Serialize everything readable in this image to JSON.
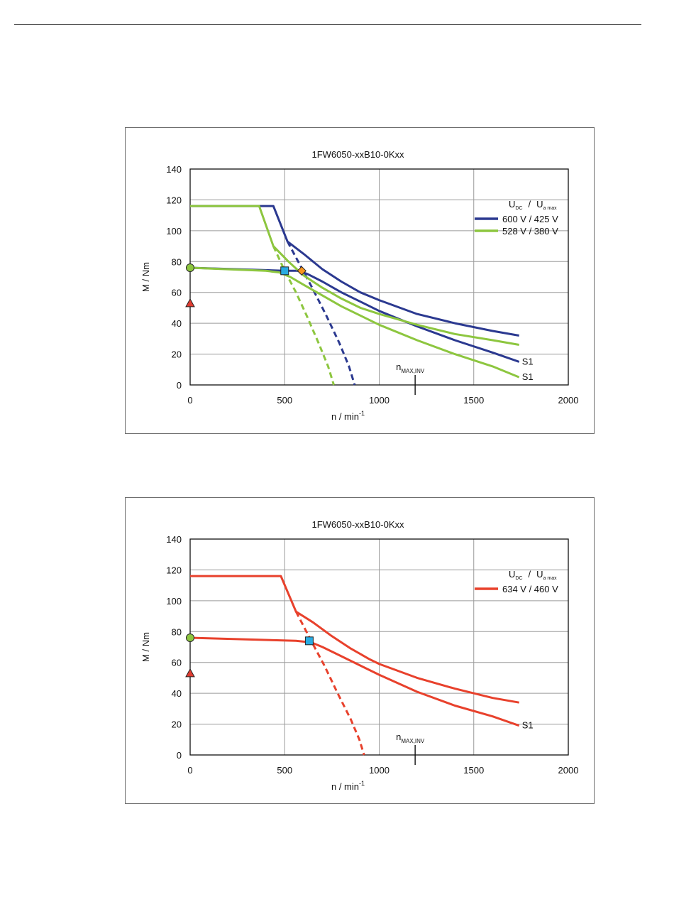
{
  "chart_data": [
    {
      "type": "line",
      "title": "1FW6050-xxB10-0Kxx",
      "xlabel": "n / min",
      "xlabel_sup": "-1",
      "ylabel": "M / Nm",
      "xlim": [
        0,
        2000
      ],
      "ylim": [
        0,
        140
      ],
      "xticks": [
        0,
        500,
        1000,
        1500,
        2000
      ],
      "yticks": [
        0,
        20,
        40,
        60,
        80,
        100,
        120,
        140
      ],
      "grid": true,
      "legend": {
        "position": "top-right",
        "header_main_1": "U",
        "header_sub_1": "DC",
        "header_sep": "/",
        "header_main_2": "U",
        "header_sub_2": "a max",
        "entries": [
          {
            "label": "600 V / 425 V",
            "color": "#2b3990"
          },
          {
            "label": "528 V / 380 V",
            "color": "#8dc63f"
          }
        ]
      },
      "annotation": {
        "text": "n",
        "sub": "MAX,INV",
        "x": 1190
      },
      "series": [
        {
          "color": "#2b3990",
          "style": "solid",
          "label": "",
          "points": [
            [
              0,
              116
            ],
            [
              440,
              116
            ],
            [
              515,
              93
            ],
            [
              600,
              85
            ],
            [
              700,
              75
            ],
            [
              800,
              67
            ],
            [
              900,
              60
            ],
            [
              1000,
              55
            ],
            [
              1200,
              46
            ],
            [
              1400,
              40
            ],
            [
              1600,
              35
            ],
            [
              1740,
              32
            ]
          ]
        },
        {
          "color": "#2b3990",
          "style": "dashed",
          "label": "",
          "points": [
            [
              515,
              93
            ],
            [
              580,
              78
            ],
            [
              650,
              62
            ],
            [
              720,
              45
            ],
            [
              790,
              27
            ],
            [
              840,
              12
            ],
            [
              870,
              0
            ]
          ]
        },
        {
          "color": "#2b3990",
          "style": "solid",
          "label": "S1",
          "points": [
            [
              0,
              76
            ],
            [
              500,
              74
            ],
            [
              570,
              74
            ],
            [
              620,
              72
            ],
            [
              700,
              67
            ],
            [
              800,
              60
            ],
            [
              900,
              54
            ],
            [
              1000,
              48
            ],
            [
              1200,
              38
            ],
            [
              1400,
              29
            ],
            [
              1600,
              21
            ],
            [
              1740,
              15
            ]
          ]
        },
        {
          "color": "#8dc63f",
          "style": "solid",
          "label": "",
          "points": [
            [
              0,
              116
            ],
            [
              365,
              116
            ],
            [
              440,
              90
            ],
            [
              520,
              80
            ],
            [
              600,
              71
            ],
            [
              700,
              63
            ],
            [
              800,
              56
            ],
            [
              900,
              50
            ],
            [
              1000,
              46
            ],
            [
              1200,
              39
            ],
            [
              1400,
              33
            ],
            [
              1600,
              29
            ],
            [
              1740,
              26
            ]
          ]
        },
        {
          "color": "#8dc63f",
          "style": "dashed",
          "label": "",
          "points": [
            [
              440,
              90
            ],
            [
              500,
              74
            ],
            [
              560,
              60
            ],
            [
              620,
              44
            ],
            [
              680,
              27
            ],
            [
              730,
              12
            ],
            [
              760,
              0
            ]
          ]
        },
        {
          "color": "#8dc63f",
          "style": "solid",
          "label": "S1",
          "points": [
            [
              0,
              76
            ],
            [
              400,
              74
            ],
            [
              470,
              73
            ],
            [
              530,
              70
            ],
            [
              600,
              65
            ],
            [
              700,
              58
            ],
            [
              800,
              51
            ],
            [
              900,
              45
            ],
            [
              1000,
              39
            ],
            [
              1200,
              29
            ],
            [
              1400,
              20
            ],
            [
              1600,
              12
            ],
            [
              1740,
              5
            ]
          ]
        }
      ],
      "markers": [
        {
          "shape": "circle",
          "x": 0,
          "y": 76,
          "color": "#8dc63f"
        },
        {
          "shape": "triangle",
          "x": 0,
          "y": 53,
          "color": "#e03c31"
        },
        {
          "shape": "square",
          "x": 500,
          "y": 74,
          "color": "#29abe2"
        },
        {
          "shape": "diamond",
          "x": 590,
          "y": 74,
          "color": "#f7941d"
        }
      ]
    },
    {
      "type": "line",
      "title": "1FW6050-xxB10-0Kxx",
      "xlabel": "n / min",
      "xlabel_sup": "-1",
      "ylabel": "M / Nm",
      "xlim": [
        0,
        2000
      ],
      "ylim": [
        0,
        140
      ],
      "xticks": [
        0,
        500,
        1000,
        1500,
        2000
      ],
      "yticks": [
        0,
        20,
        40,
        60,
        80,
        100,
        120,
        140
      ],
      "grid": true,
      "legend": {
        "position": "top-right",
        "header_main_1": "U",
        "header_sub_1": "DC",
        "header_sep": "/",
        "header_main_2": "U",
        "header_sub_2": "a max",
        "entries": [
          {
            "label": "634 V / 460 V",
            "color": "#e8412c"
          }
        ]
      },
      "annotation": {
        "text": "n",
        "sub": "MAX,INV",
        "x": 1190
      },
      "series": [
        {
          "color": "#e8412c",
          "style": "solid",
          "label": "",
          "points": [
            [
              0,
              116
            ],
            [
              480,
              116
            ],
            [
              560,
              93
            ],
            [
              650,
              86
            ],
            [
              750,
              77
            ],
            [
              850,
              69
            ],
            [
              950,
              62
            ],
            [
              1000,
              59
            ],
            [
              1200,
              50
            ],
            [
              1400,
              43
            ],
            [
              1600,
              37
            ],
            [
              1740,
              34
            ]
          ]
        },
        {
          "color": "#e8412c",
          "style": "dashed",
          "label": "",
          "points": [
            [
              560,
              93
            ],
            [
              640,
              74
            ],
            [
              710,
              58
            ],
            [
              780,
              40
            ],
            [
              850,
              23
            ],
            [
              895,
              10
            ],
            [
              920,
              0
            ]
          ]
        },
        {
          "color": "#e8412c",
          "style": "solid",
          "label": "S1",
          "points": [
            [
              0,
              76
            ],
            [
              560,
              74
            ],
            [
              640,
              73
            ],
            [
              700,
              70
            ],
            [
              800,
              64
            ],
            [
              900,
              58
            ],
            [
              1000,
              52
            ],
            [
              1200,
              41
            ],
            [
              1400,
              32
            ],
            [
              1600,
              25
            ],
            [
              1740,
              19
            ]
          ]
        }
      ],
      "markers": [
        {
          "shape": "circle",
          "x": 0,
          "y": 76,
          "color": "#8dc63f"
        },
        {
          "shape": "triangle",
          "x": 0,
          "y": 53,
          "color": "#e03c31"
        },
        {
          "shape": "square",
          "x": 630,
          "y": 74,
          "color": "#29abe2"
        }
      ]
    }
  ]
}
